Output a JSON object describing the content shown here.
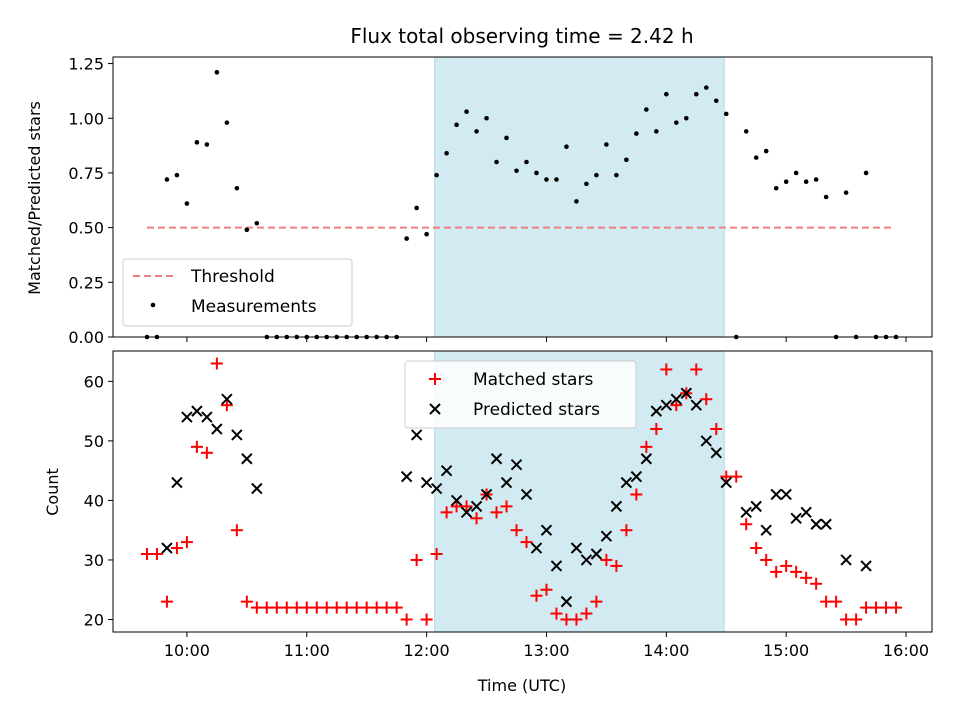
{
  "chart_data": {
    "title": "Flux total observing time = 2.42 h",
    "xlabel": "Time (UTC)",
    "x_unit": "hours UTC",
    "xlim": [
      "09:23",
      "16:13"
    ],
    "xticks": [
      {
        "value": "10:00",
        "label": "10:00"
      },
      {
        "value": "11:00",
        "label": "11:00"
      },
      {
        "value": "12:00",
        "label": "12:00"
      },
      {
        "value": "13:00",
        "label": "13:00"
      },
      {
        "value": "14:00",
        "label": "14:00"
      },
      {
        "value": "15:00",
        "label": "15:00"
      },
      {
        "value": "16:00",
        "label": "16:00"
      }
    ],
    "highlight_span": {
      "start": "12:04",
      "end": "14:29",
      "color": "#add8e6"
    },
    "panels": [
      {
        "type": "scatter",
        "ylabel": "Matched/Predicted stars",
        "ylim": [
          0,
          1.28
        ],
        "yticks": [
          {
            "value": 0,
            "label": "0.00"
          },
          {
            "value": 0.25,
            "label": "0.25"
          },
          {
            "value": 0.5,
            "label": "0.50"
          },
          {
            "value": 0.75,
            "label": "0.75"
          },
          {
            "value": 1.0,
            "label": "1.00"
          },
          {
            "value": 1.25,
            "label": "1.25"
          }
        ],
        "legend_position": "lower-left",
        "threshold": {
          "name": "Threshold",
          "value": 0.5,
          "x_range": [
            "09:40",
            "15:53"
          ],
          "color": "#f08080"
        },
        "measurements": {
          "name": "Measurements",
          "color": "#000000",
          "points": [
            [
              "09:40",
              0
            ],
            [
              "09:45",
              0
            ],
            [
              "09:50",
              0.72
            ],
            [
              "09:55",
              0.74
            ],
            [
              "10:00",
              0.61
            ],
            [
              "10:05",
              0.89
            ],
            [
              "10:10",
              0.88
            ],
            [
              "10:15",
              1.21
            ],
            [
              "10:20",
              0.98
            ],
            [
              "10:25",
              0.68
            ],
            [
              "10:30",
              0.49
            ],
            [
              "10:35",
              0.52
            ],
            [
              "10:40",
              0
            ],
            [
              "10:45",
              0
            ],
            [
              "10:50",
              0
            ],
            [
              "10:55",
              0
            ],
            [
              "11:00",
              0
            ],
            [
              "11:05",
              0
            ],
            [
              "11:10",
              0
            ],
            [
              "11:15",
              0
            ],
            [
              "11:20",
              0
            ],
            [
              "11:25",
              0
            ],
            [
              "11:30",
              0
            ],
            [
              "11:35",
              0
            ],
            [
              "11:40",
              0
            ],
            [
              "11:45",
              0
            ],
            [
              "11:50",
              0.45
            ],
            [
              "11:55",
              0.59
            ],
            [
              "12:00",
              0.47
            ],
            [
              "12:05",
              0.74
            ],
            [
              "12:10",
              0.84
            ],
            [
              "12:15",
              0.97
            ],
            [
              "12:20",
              1.03
            ],
            [
              "12:25",
              0.94
            ],
            [
              "12:30",
              1.0
            ],
            [
              "12:35",
              0.8
            ],
            [
              "12:40",
              0.91
            ],
            [
              "12:45",
              0.76
            ],
            [
              "12:50",
              0.8
            ],
            [
              "12:55",
              0.75
            ],
            [
              "13:00",
              0.72
            ],
            [
              "13:05",
              0.72
            ],
            [
              "13:10",
              0.87
            ],
            [
              "13:15",
              0.62
            ],
            [
              "13:20",
              0.7
            ],
            [
              "13:25",
              0.74
            ],
            [
              "13:30",
              0.88
            ],
            [
              "13:35",
              0.74
            ],
            [
              "13:40",
              0.81
            ],
            [
              "13:45",
              0.93
            ],
            [
              "13:50",
              1.04
            ],
            [
              "13:55",
              0.94
            ],
            [
              "14:00",
              1.11
            ],
            [
              "14:05",
              0.98
            ],
            [
              "14:10",
              1.0
            ],
            [
              "14:15",
              1.11
            ],
            [
              "14:20",
              1.14
            ],
            [
              "14:25",
              1.08
            ],
            [
              "14:30",
              1.02
            ],
            [
              "14:35",
              0
            ],
            [
              "14:40",
              0.94
            ],
            [
              "14:45",
              0.82
            ],
            [
              "14:50",
              0.85
            ],
            [
              "14:55",
              0.68
            ],
            [
              "15:00",
              0.71
            ],
            [
              "15:05",
              0.75
            ],
            [
              "15:10",
              0.71
            ],
            [
              "15:15",
              0.72
            ],
            [
              "15:20",
              0.64
            ],
            [
              "15:25",
              0.0
            ],
            [
              "15:30",
              0.66
            ],
            [
              "15:35",
              0
            ],
            [
              "15:40",
              0.75
            ],
            [
              "15:45",
              0
            ],
            [
              "15:50",
              0
            ],
            [
              "15:55",
              0
            ]
          ]
        }
      },
      {
        "type": "scatter",
        "ylabel": "Count",
        "ylim": [
          17.9,
          65.1
        ],
        "yticks": [
          {
            "value": 20,
            "label": "20"
          },
          {
            "value": 30,
            "label": "30"
          },
          {
            "value": 40,
            "label": "40"
          },
          {
            "value": 50,
            "label": "50"
          },
          {
            "value": 60,
            "label": "60"
          }
        ],
        "legend_position": "top-center",
        "series": [
          {
            "name": "Matched stars",
            "marker": "plus",
            "color": "#ff0000",
            "points": [
              [
                "09:40",
                31
              ],
              [
                "09:45",
                31
              ],
              [
                "09:50",
                23
              ],
              [
                "09:55",
                32
              ],
              [
                "10:00",
                33
              ],
              [
                "10:05",
                49
              ],
              [
                "10:10",
                48
              ],
              [
                "10:15",
                63
              ],
              [
                "10:20",
                56
              ],
              [
                "10:25",
                35
              ],
              [
                "10:30",
                23
              ],
              [
                "10:35",
                22
              ],
              [
                "10:40",
                22
              ],
              [
                "10:45",
                22
              ],
              [
                "10:50",
                22
              ],
              [
                "10:55",
                22
              ],
              [
                "11:00",
                22
              ],
              [
                "11:05",
                22
              ],
              [
                "11:10",
                22
              ],
              [
                "11:15",
                22
              ],
              [
                "11:20",
                22
              ],
              [
                "11:25",
                22
              ],
              [
                "11:30",
                22
              ],
              [
                "11:35",
                22
              ],
              [
                "11:40",
                22
              ],
              [
                "11:45",
                22
              ],
              [
                "11:50",
                20
              ],
              [
                "11:55",
                30
              ],
              [
                "12:00",
                20
              ],
              [
                "12:05",
                31
              ],
              [
                "12:10",
                38
              ],
              [
                "12:15",
                39
              ],
              [
                "12:20",
                39
              ],
              [
                "12:25",
                37
              ],
              [
                "12:30",
                41
              ],
              [
                "12:35",
                38
              ],
              [
                "12:40",
                39
              ],
              [
                "12:45",
                35
              ],
              [
                "12:50",
                33
              ],
              [
                "12:55",
                24
              ],
              [
                "13:00",
                25
              ],
              [
                "13:05",
                21
              ],
              [
                "13:10",
                20
              ],
              [
                "13:15",
                20
              ],
              [
                "13:20",
                21
              ],
              [
                "13:25",
                23
              ],
              [
                "13:30",
                30
              ],
              [
                "13:35",
                29
              ],
              [
                "13:40",
                35
              ],
              [
                "13:45",
                41
              ],
              [
                "13:50",
                49
              ],
              [
                "13:55",
                52
              ],
              [
                "14:00",
                62
              ],
              [
                "14:05",
                56
              ],
              [
                "14:10",
                58
              ],
              [
                "14:15",
                62
              ],
              [
                "14:20",
                57
              ],
              [
                "14:25",
                52
              ],
              [
                "14:30",
                44
              ],
              [
                "14:35",
                44
              ],
              [
                "14:40",
                36
              ],
              [
                "14:45",
                32
              ],
              [
                "14:50",
                30
              ],
              [
                "14:55",
                28
              ],
              [
                "15:00",
                29
              ],
              [
                "15:05",
                28
              ],
              [
                "15:10",
                27
              ],
              [
                "15:15",
                26
              ],
              [
                "15:20",
                23
              ],
              [
                "15:25",
                23
              ],
              [
                "15:30",
                20
              ],
              [
                "15:35",
                20
              ],
              [
                "15:40",
                22
              ],
              [
                "15:45",
                22
              ],
              [
                "15:50",
                22
              ],
              [
                "15:55",
                22
              ]
            ]
          },
          {
            "name": "Predicted stars",
            "marker": "x",
            "color": "#000000",
            "points": [
              [
                "09:50",
                32
              ],
              [
                "09:55",
                43
              ],
              [
                "10:00",
                54
              ],
              [
                "10:05",
                55
              ],
              [
                "10:10",
                54
              ],
              [
                "10:15",
                52
              ],
              [
                "10:20",
                57
              ],
              [
                "10:25",
                51
              ],
              [
                "10:30",
                47
              ],
              [
                "10:35",
                42
              ],
              [
                "11:50",
                44
              ],
              [
                "11:55",
                51
              ],
              [
                "12:00",
                43
              ],
              [
                "12:05",
                42
              ],
              [
                "12:10",
                45
              ],
              [
                "12:15",
                40
              ],
              [
                "12:20",
                38
              ],
              [
                "12:25",
                39
              ],
              [
                "12:30",
                41
              ],
              [
                "12:35",
                47
              ],
              [
                "12:40",
                43
              ],
              [
                "12:45",
                46
              ],
              [
                "12:50",
                41
              ],
              [
                "12:55",
                32
              ],
              [
                "13:00",
                35
              ],
              [
                "13:05",
                29
              ],
              [
                "13:10",
                23
              ],
              [
                "13:15",
                32
              ],
              [
                "13:20",
                30
              ],
              [
                "13:25",
                31
              ],
              [
                "13:30",
                34
              ],
              [
                "13:35",
                39
              ],
              [
                "13:40",
                43
              ],
              [
                "13:45",
                44
              ],
              [
                "13:50",
                47
              ],
              [
                "13:55",
                55
              ],
              [
                "14:00",
                56
              ],
              [
                "14:05",
                57
              ],
              [
                "14:10",
                58
              ],
              [
                "14:15",
                56
              ],
              [
                "14:20",
                50
              ],
              [
                "14:25",
                48
              ],
              [
                "14:30",
                43
              ],
              [
                "14:40",
                38
              ],
              [
                "14:45",
                39
              ],
              [
                "14:50",
                35
              ],
              [
                "14:55",
                41
              ],
              [
                "15:00",
                41
              ],
              [
                "15:05",
                37
              ],
              [
                "15:10",
                38
              ],
              [
                "15:15",
                36
              ],
              [
                "15:20",
                36
              ],
              [
                "15:30",
                30
              ],
              [
                "15:40",
                29
              ]
            ]
          }
        ]
      }
    ]
  }
}
